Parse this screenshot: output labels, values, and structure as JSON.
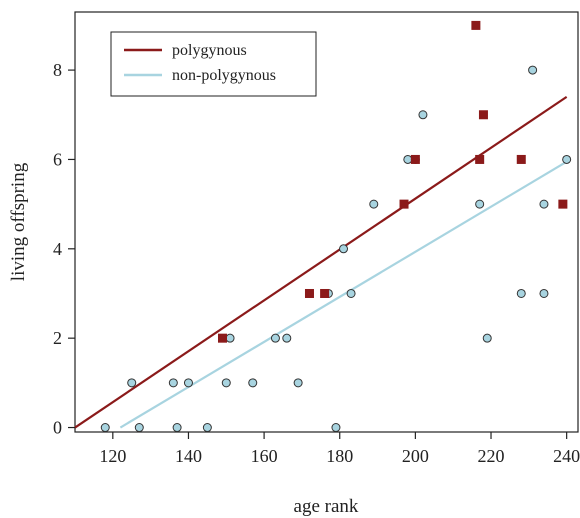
{
  "chart_data": {
    "type": "scatter",
    "title": "",
    "xlabel": "age rank",
    "ylabel": "living offspring",
    "xlim": [
      110,
      243
    ],
    "ylim": [
      -0.1,
      9.3
    ],
    "xticks": [
      120,
      140,
      160,
      180,
      200,
      220,
      240
    ],
    "yticks": [
      0,
      2,
      4,
      6,
      8
    ],
    "xtick_labels": [
      "120",
      "140",
      "160",
      "180",
      "200",
      "220",
      "240"
    ],
    "ytick_labels": [
      "0",
      "2",
      "4",
      "6",
      "8"
    ],
    "grid": false,
    "legend_position": "top-left",
    "series": [
      {
        "name": "polygynous",
        "color": "#8b1a1a",
        "marker": "square",
        "points": [
          {
            "x": 149,
            "y": 2
          },
          {
            "x": 172,
            "y": 3
          },
          {
            "x": 176,
            "y": 3
          },
          {
            "x": 197,
            "y": 5
          },
          {
            "x": 200,
            "y": 6
          },
          {
            "x": 216,
            "y": 9
          },
          {
            "x": 217,
            "y": 6
          },
          {
            "x": 218,
            "y": 7
          },
          {
            "x": 228,
            "y": 6
          },
          {
            "x": 239,
            "y": 5
          }
        ],
        "fit_line": [
          {
            "x": 110,
            "y": 0.0
          },
          {
            "x": 240,
            "y": 7.4
          }
        ]
      },
      {
        "name": "non-polygynous",
        "color": "#a8d4e0",
        "marker": "circle",
        "points": [
          {
            "x": 118,
            "y": 0
          },
          {
            "x": 125,
            "y": 1
          },
          {
            "x": 127,
            "y": 0
          },
          {
            "x": 136,
            "y": 1
          },
          {
            "x": 137,
            "y": 0
          },
          {
            "x": 140,
            "y": 1
          },
          {
            "x": 145,
            "y": 0
          },
          {
            "x": 150,
            "y": 1
          },
          {
            "x": 151,
            "y": 2
          },
          {
            "x": 157,
            "y": 1
          },
          {
            "x": 163,
            "y": 2
          },
          {
            "x": 166,
            "y": 2
          },
          {
            "x": 169,
            "y": 1
          },
          {
            "x": 172,
            "y": 3
          },
          {
            "x": 177,
            "y": 3
          },
          {
            "x": 179,
            "y": 0
          },
          {
            "x": 181,
            "y": 4
          },
          {
            "x": 183,
            "y": 3
          },
          {
            "x": 189,
            "y": 5
          },
          {
            "x": 198,
            "y": 6
          },
          {
            "x": 200,
            "y": 6
          },
          {
            "x": 202,
            "y": 7
          },
          {
            "x": 217,
            "y": 5
          },
          {
            "x": 219,
            "y": 2
          },
          {
            "x": 228,
            "y": 3
          },
          {
            "x": 231,
            "y": 8
          },
          {
            "x": 234,
            "y": 5
          },
          {
            "x": 234,
            "y": 3
          },
          {
            "x": 240,
            "y": 6
          }
        ],
        "fit_line": [
          {
            "x": 122,
            "y": 0.0
          },
          {
            "x": 240,
            "y": 5.95
          }
        ]
      }
    ]
  }
}
